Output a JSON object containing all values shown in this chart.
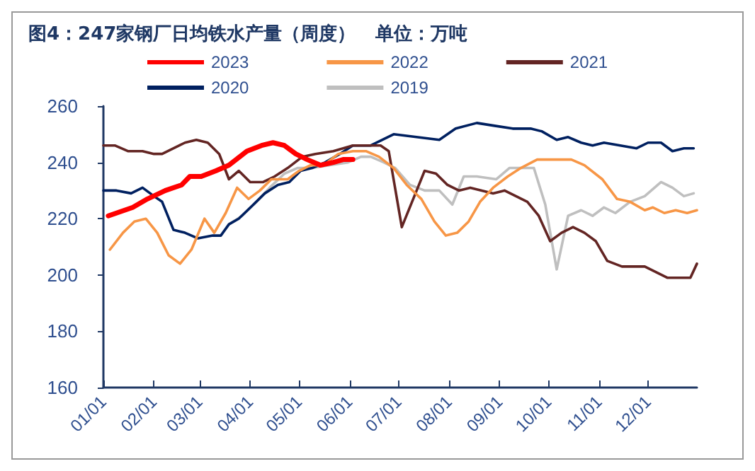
{
  "chart_data": {
    "type": "line",
    "title": "图4：247家钢厂日均铁水产量（周度）   单位：万吨",
    "xlim": [
      "--01-01",
      "--12-31"
    ],
    "xticks": [
      {
        "value": "--01-01",
        "label": "01/01"
      },
      {
        "value": "--02-01",
        "label": "02/01"
      },
      {
        "value": "--03-01",
        "label": "03/01"
      },
      {
        "value": "--04-01",
        "label": "04/01"
      },
      {
        "value": "--05-01",
        "label": "05/01"
      },
      {
        "value": "--06-01",
        "label": "06/01"
      },
      {
        "value": "--07-01",
        "label": "07/01"
      },
      {
        "value": "--08-01",
        "label": "08/01"
      },
      {
        "value": "--09-01",
        "label": "09/01"
      },
      {
        "value": "--10-01",
        "label": "10/01"
      },
      {
        "value": "--11-01",
        "label": "11/01"
      },
      {
        "value": "--12-01",
        "label": "12/01"
      }
    ],
    "ylim": [
      160,
      260
    ],
    "yticks": [
      160,
      180,
      200,
      220,
      240,
      260
    ],
    "grid": false,
    "legend": "top",
    "marker": "none",
    "line_style": "solid",
    "series": [
      {
        "name": "2023",
        "color": "#ff0000",
        "x": [
          "--01-04",
          "--01-19",
          "--01-28",
          "--02-08",
          "--02-18",
          "--02-23",
          "--03-02",
          "--03-11",
          "--03-19",
          "--03-30",
          "--04-08",
          "--04-15",
          "--04-22",
          "--04-29",
          "--05-06",
          "--05-14",
          "--05-22",
          "--05-28",
          "--06-03"
        ],
        "values": [
          221,
          224,
          227,
          230,
          232,
          235,
          235,
          237,
          239,
          244,
          246,
          247,
          246,
          243,
          241,
          239,
          240,
          241,
          241
        ]
      },
      {
        "name": "2022",
        "color": "#f79646",
        "x": [
          "--01-05",
          "--01-13",
          "--01-20",
          "--01-27",
          "--02-03",
          "--02-10",
          "--02-17",
          "--02-24",
          "--03-04",
          "--03-10",
          "--03-17",
          "--03-24",
          "--03-31",
          "--04-07",
          "--04-14",
          "--04-24",
          "--05-01",
          "--05-08",
          "--05-16",
          "--05-25",
          "--06-03",
          "--06-11",
          "--06-19",
          "--06-28",
          "--07-06",
          "--07-15",
          "--07-23",
          "--07-30",
          "--08-06",
          "--08-13",
          "--08-20",
          "--08-28",
          "--09-06",
          "--09-14",
          "--09-24",
          "--10-15",
          "--10-23",
          "--11-03",
          "--11-12",
          "--11-20",
          "--11-29",
          "--12-04",
          "--12-11",
          "--12-18",
          "--12-25",
          "--12-31"
        ],
        "values": [
          209,
          215,
          219,
          220,
          215,
          207,
          204,
          209,
          220,
          215,
          222,
          231,
          227,
          230,
          234,
          234,
          237,
          239,
          239,
          243,
          244,
          244,
          242,
          238,
          232,
          227,
          219,
          214,
          215,
          219,
          226,
          231,
          235,
          238,
          241,
          241,
          239,
          234,
          227,
          226,
          223,
          224,
          222,
          223,
          222,
          223
        ]
      },
      {
        "name": "2021",
        "color": "#632523",
        "x": [
          "--01-01",
          "--01-08",
          "--01-16",
          "--01-25",
          "--02-01",
          "--02-06",
          "--02-20",
          "--02-27",
          "--03-06",
          "--03-13",
          "--03-19",
          "--03-25",
          "--04-01",
          "--04-09",
          "--04-16",
          "--04-24",
          "--05-03",
          "--05-11",
          "--05-22",
          "--06-03",
          "--06-14",
          "--06-20",
          "--06-25",
          "--07-03",
          "--07-10",
          "--07-17",
          "--07-24",
          "--07-31",
          "--08-07",
          "--08-14",
          "--08-21",
          "--08-28",
          "--09-04",
          "--09-11",
          "--09-18",
          "--09-25",
          "--10-02",
          "--10-09",
          "--10-16",
          "--10-23",
          "--10-30",
          "--11-06",
          "--11-15",
          "--11-22",
          "--11-29",
          "--12-06",
          "--12-13",
          "--12-20",
          "--12-27",
          "--12-31"
        ],
        "values": [
          246,
          246,
          244,
          244,
          243,
          243,
          247,
          248,
          247,
          243,
          234,
          237,
          233,
          233,
          235,
          238,
          242,
          243,
          244,
          246,
          246,
          246,
          244,
          217,
          227,
          237,
          236,
          232,
          230,
          231,
          230,
          229,
          230,
          228,
          226,
          221,
          212,
          215,
          217,
          215,
          212,
          205,
          203,
          203,
          203,
          201,
          199,
          199,
          199,
          204
        ]
      },
      {
        "name": "2020",
        "color": "#002060",
        "x": [
          "--01-01",
          "--01-09",
          "--01-18",
          "--01-25",
          "--02-01",
          "--02-06",
          "--02-13",
          "--02-20",
          "--02-28",
          "--03-09",
          "--03-14",
          "--03-19",
          "--03-25",
          "--04-03",
          "--04-10",
          "--04-18",
          "--04-25",
          "--05-02",
          "--05-09",
          "--05-17",
          "--05-26",
          "--06-03",
          "--06-14",
          "--06-28",
          "--07-12",
          "--07-26",
          "--08-05",
          "--08-18",
          "--08-29",
          "--09-09",
          "--09-20",
          "--09-27",
          "--10-06",
          "--10-13",
          "--10-21",
          "--10-28",
          "--11-04",
          "--11-14",
          "--11-24",
          "--12-01",
          "--12-09",
          "--12-16",
          "--12-23",
          "--12-29"
        ],
        "values": [
          230,
          230,
          229,
          231,
          228,
          226,
          216,
          215,
          213,
          214,
          214,
          218,
          220,
          225,
          229,
          232,
          233,
          237,
          238,
          240,
          243,
          246,
          246,
          250,
          249,
          248,
          252,
          254,
          253,
          252,
          252,
          251,
          248,
          249,
          247,
          246,
          247,
          246,
          245,
          247,
          247,
          244,
          245,
          245
        ]
      },
      {
        "name": "2019",
        "color": "#bfbfbf",
        "x": [
          "--03-19",
          "--03-27",
          "--04-05",
          "--04-13",
          "--04-22",
          "--04-30",
          "--05-09",
          "--05-20",
          "--05-31",
          "--06-08",
          "--06-14",
          "--06-22",
          "--06-29",
          "--07-08",
          "--07-17",
          "--07-26",
          "--08-03",
          "--08-10",
          "--08-18",
          "--08-30",
          "--09-07",
          "--09-22",
          "--09-29",
          "--10-06",
          "--10-13",
          "--10-21",
          "--10-28",
          "--11-04",
          "--11-11",
          "--11-20",
          "--11-29",
          "--12-09",
          "--12-16",
          "--12-23",
          "--12-29"
        ],
        "values": [
          218,
          221,
          226,
          231,
          236,
          238,
          238,
          239,
          240,
          242,
          242,
          240,
          238,
          232,
          230,
          230,
          225,
          235,
          235,
          234,
          238,
          238,
          225,
          202,
          221,
          223,
          221,
          224,
          222,
          226,
          228,
          233,
          231,
          228,
          229
        ]
      }
    ]
  }
}
